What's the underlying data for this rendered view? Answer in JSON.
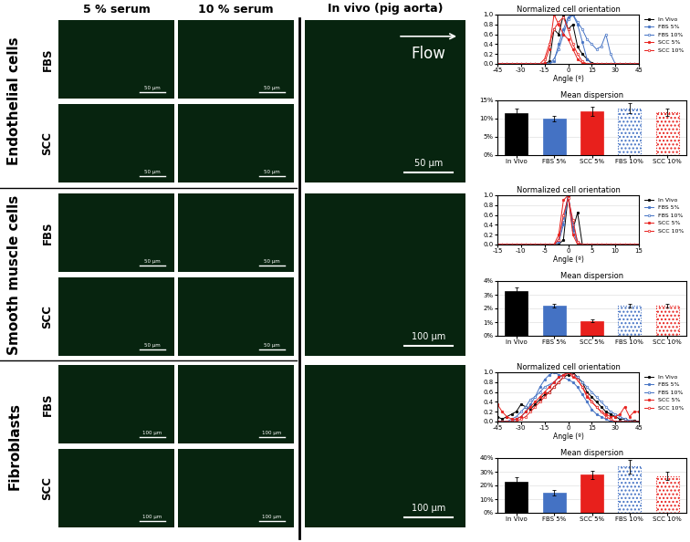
{
  "columns": [
    "5 % serum",
    "10 % serum"
  ],
  "in_vivo_title": "In vivo (pig aorta)",
  "rows": [
    {
      "label": "Endothelial cells",
      "conditions": [
        "FBS",
        "SCC"
      ],
      "scale_bar": "50 µm",
      "in_vivo_scale_bar": "50 µm",
      "annotation": "Flow"
    },
    {
      "label": "Smooth muscle cells",
      "conditions": [
        "FBS",
        "SCC"
      ],
      "scale_bar": "50 µm",
      "in_vivo_scale_bar": "100 µm"
    },
    {
      "label": "Fibroblasts",
      "conditions": [
        "FBS",
        "SCC"
      ],
      "scale_bar": "100 µm",
      "in_vivo_scale_bar": "100 µm"
    }
  ],
  "chart_data": [
    {
      "type": "line",
      "title": "Normalized cell orientation",
      "x_label": "Angle (º)",
      "x": [
        -45,
        -42,
        -39,
        -36,
        -33,
        -30,
        -27,
        -24,
        -21,
        -18,
        -15,
        -12,
        -9,
        -6,
        -3,
        0,
        3,
        6,
        9,
        12,
        15,
        18,
        21,
        24,
        27,
        30,
        33,
        36,
        39,
        42,
        45
      ],
      "series": [
        {
          "name": "In Vivo",
          "color": "#000000",
          "marker": "circle",
          "line_style": "solid",
          "values": [
            0,
            0,
            0,
            0,
            0,
            0,
            0,
            0,
            0,
            0,
            0,
            0.05,
            0.7,
            0.6,
            1.0,
            0.7,
            0.8,
            0.35,
            0.2,
            0.1,
            0.02,
            0,
            0,
            0,
            0,
            0,
            0,
            0,
            0,
            0,
            0
          ]
        },
        {
          "name": "FBS 5%",
          "color": "#4472c4",
          "marker": "circle",
          "line_style": "solid",
          "values": [
            0,
            0,
            0,
            0,
            0,
            0,
            0,
            0,
            0,
            0,
            0,
            0,
            0.05,
            0.4,
            0.7,
            0.95,
            1.0,
            0.8,
            0.45,
            0.1,
            0,
            0,
            0,
            0,
            0,
            0,
            0,
            0,
            0,
            0,
            0
          ]
        },
        {
          "name": "FBS 10%",
          "color": "#4472c4",
          "marker": "open_circle",
          "line_style": "solid",
          "values": [
            0,
            0,
            0,
            0,
            0,
            0,
            0,
            0,
            0,
            0,
            0,
            0,
            0.1,
            0.3,
            0.6,
            0.9,
            1.0,
            0.85,
            0.7,
            0.5,
            0.4,
            0.3,
            0.35,
            0.6,
            0.2,
            0,
            0,
            0,
            0,
            0,
            0
          ]
        },
        {
          "name": "SCC 5%",
          "color": "#e8201c",
          "marker": "circle",
          "line_style": "solid",
          "values": [
            0,
            0,
            0,
            0,
            0,
            0,
            0,
            0,
            0,
            0,
            0.02,
            0.3,
            1.0,
            0.8,
            0.6,
            0.5,
            0.3,
            0.1,
            0.02,
            0,
            0,
            0,
            0,
            0,
            0,
            0,
            0,
            0,
            0,
            0,
            0
          ]
        },
        {
          "name": "SCC 10%",
          "color": "#e8201c",
          "marker": "open_circle",
          "line_style": "solid",
          "values": [
            0,
            0,
            0,
            0,
            0,
            0,
            0,
            0,
            0,
            0,
            0.1,
            0.4,
            0.7,
            0.85,
            0.95,
            0.7,
            0.4,
            0.2,
            0.05,
            0,
            0,
            0,
            0,
            0,
            0,
            0,
            0,
            0,
            0,
            0,
            0
          ]
        }
      ],
      "xlim": [
        -45,
        45
      ],
      "xticks": [
        -45,
        -30,
        -15,
        0,
        15,
        30,
        45
      ],
      "ylim": [
        0,
        1.0
      ],
      "yticks": [
        {
          "value": 0,
          "label": "0.0"
        },
        {
          "value": 0.2,
          "label": "0.2"
        },
        {
          "value": 0.4,
          "label": "0.4"
        },
        {
          "value": 0.6,
          "label": "0.6"
        },
        {
          "value": 0.8,
          "label": "0.8"
        },
        {
          "value": 1.0,
          "label": "1.0"
        }
      ],
      "grid": true,
      "legend": "upper right"
    },
    {
      "type": "bar",
      "title": "Mean dispersion",
      "categories": [
        "In Vivo",
        "FBS 5%",
        "SCC 5%",
        "FBS 10%",
        "SCC 10%"
      ],
      "values": [
        11.5,
        10,
        12,
        12.8,
        11.7
      ],
      "errors": [
        1.2,
        0.8,
        1.2,
        1.4,
        1.0
      ],
      "colors": [
        "#000000",
        "#4472c4",
        "#e8201c",
        "#4472c4",
        "#e8201c"
      ],
      "ylim": [
        0,
        15
      ],
      "yticks": [
        {
          "value": 0,
          "label": "0%"
        },
        {
          "value": 5,
          "label": "5%"
        },
        {
          "value": 10,
          "label": "10%"
        },
        {
          "value": 15,
          "label": "15%"
        }
      ],
      "grid": true
    },
    {
      "type": "line",
      "title": "Normalized cell orientation",
      "x_label": "Angle (º)",
      "x": [
        -15,
        -14,
        -13,
        -12,
        -11,
        -10,
        -9,
        -8,
        -7,
        -6,
        -5,
        -4,
        -3,
        -2,
        -1,
        0,
        1,
        2,
        3,
        4,
        5,
        6,
        7,
        8,
        9,
        10,
        11,
        12,
        13,
        14,
        15
      ],
      "series": [
        {
          "name": "In Vivo",
          "color": "#000000",
          "marker": "circle",
          "line_style": "solid",
          "values": [
            0,
            0,
            0,
            0,
            0,
            0,
            0,
            0,
            0,
            0,
            0,
            0,
            0,
            0,
            0.1,
            1.0,
            0.3,
            0.65,
            0,
            0,
            0,
            0,
            0,
            0,
            0,
            0,
            0,
            0,
            0,
            0,
            0
          ]
        },
        {
          "name": "FBS 5%",
          "color": "#4472c4",
          "marker": "circle",
          "line_style": "solid",
          "values": [
            0,
            0,
            0,
            0,
            0,
            0,
            0,
            0,
            0,
            0,
            0,
            0,
            0,
            0.05,
            0.4,
            1.0,
            0.3,
            0.02,
            0,
            0,
            0,
            0,
            0,
            0,
            0,
            0,
            0,
            0,
            0,
            0,
            0
          ]
        },
        {
          "name": "FBS 10%",
          "color": "#4472c4",
          "marker": "open_circle",
          "line_style": "solid",
          "values": [
            0,
            0,
            0,
            0,
            0,
            0,
            0,
            0,
            0,
            0,
            0,
            0,
            0,
            0.1,
            0.5,
            1.0,
            0.4,
            0.05,
            0,
            0,
            0,
            0,
            0,
            0,
            0,
            0,
            0,
            0,
            0,
            0,
            0
          ]
        },
        {
          "name": "SCC 5%",
          "color": "#e8201c",
          "marker": "circle",
          "line_style": "solid",
          "values": [
            0,
            0,
            0,
            0,
            0,
            0,
            0,
            0,
            0,
            0,
            0,
            0,
            0,
            0.2,
            0.9,
            1.0,
            0.2,
            0,
            0,
            0,
            0,
            0,
            0,
            0,
            0,
            0,
            0,
            0,
            0,
            0,
            0
          ]
        },
        {
          "name": "SCC 10%",
          "color": "#e8201c",
          "marker": "open_circle",
          "line_style": "solid",
          "values": [
            0,
            0,
            0,
            0,
            0,
            0,
            0,
            0,
            0,
            0,
            0,
            0,
            0,
            0.1,
            0.6,
            0.95,
            0.5,
            0.05,
            0,
            0,
            0,
            0,
            0,
            0,
            0,
            0,
            0,
            0,
            0,
            0,
            0
          ]
        }
      ],
      "xlim": [
        -15,
        15
      ],
      "xticks": [
        -15,
        -10,
        -5,
        0,
        5,
        10,
        15
      ],
      "ylim": [
        0,
        1.0
      ],
      "yticks": [
        {
          "value": 0,
          "label": "0.0"
        },
        {
          "value": 0.2,
          "label": "0.2"
        },
        {
          "value": 0.4,
          "label": "0.4"
        },
        {
          "value": 0.6,
          "label": "0.6"
        },
        {
          "value": 0.8,
          "label": "0.8"
        },
        {
          "value": 1.0,
          "label": "1.0"
        }
      ],
      "grid": true,
      "legend": "upper right"
    },
    {
      "type": "bar",
      "title": "Mean dispersion",
      "categories": [
        "In Vivo",
        "FBS 5%",
        "SCC 5%",
        "FBS 10%",
        "SCC 10%"
      ],
      "values": [
        3.3,
        2.2,
        1.1,
        2.2,
        2.2
      ],
      "errors": [
        0.25,
        0.15,
        0.1,
        0.15,
        0.15
      ],
      "colors": [
        "#000000",
        "#4472c4",
        "#e8201c",
        "#4472c4",
        "#e8201c"
      ],
      "ylim": [
        0,
        4
      ],
      "yticks": [
        {
          "value": 0,
          "label": "0%"
        },
        {
          "value": 1,
          "label": "1%"
        },
        {
          "value": 2,
          "label": "2%"
        },
        {
          "value": 3,
          "label": "3%"
        },
        {
          "value": 4,
          "label": "4%"
        }
      ],
      "grid": true
    },
    {
      "type": "line",
      "title": "Normalized cell orientation",
      "x_label": "Angle (º)",
      "x": [
        -45,
        -42,
        -39,
        -36,
        -33,
        -30,
        -27,
        -24,
        -21,
        -18,
        -15,
        -12,
        -9,
        -6,
        -3,
        0,
        3,
        6,
        9,
        12,
        15,
        18,
        21,
        24,
        27,
        30,
        33,
        36,
        39,
        42,
        45
      ],
      "series": [
        {
          "name": "In Vivo",
          "color": "#000000",
          "marker": "circle",
          "line_style": "solid",
          "values": [
            0.1,
            0.05,
            0.1,
            0.15,
            0.2,
            0.35,
            0.3,
            0.25,
            0.35,
            0.45,
            0.55,
            0.6,
            0.7,
            0.8,
            0.9,
            0.95,
            1.0,
            0.9,
            0.8,
            0.6,
            0.5,
            0.4,
            0.3,
            0.2,
            0.15,
            0.1,
            0.05,
            0.05,
            0.02,
            0.02,
            0.0
          ]
        },
        {
          "name": "FBS 5%",
          "color": "#4472c4",
          "marker": "circle",
          "line_style": "solid",
          "values": [
            0,
            0,
            0,
            0,
            0.05,
            0.1,
            0.2,
            0.35,
            0.5,
            0.7,
            0.85,
            0.95,
            1.0,
            0.95,
            0.9,
            0.85,
            0.8,
            0.7,
            0.55,
            0.4,
            0.25,
            0.15,
            0.1,
            0.05,
            0,
            0,
            0,
            0,
            0,
            0,
            0
          ]
        },
        {
          "name": "FBS 10%",
          "color": "#4472c4",
          "marker": "open_circle",
          "line_style": "solid",
          "values": [
            0,
            0,
            0,
            0.05,
            0.1,
            0.2,
            0.3,
            0.45,
            0.5,
            0.6,
            0.7,
            0.75,
            0.8,
            0.9,
            0.95,
            1.0,
            0.95,
            0.9,
            0.8,
            0.7,
            0.6,
            0.5,
            0.4,
            0.3,
            0.2,
            0.15,
            0.1,
            0.05,
            0.02,
            0,
            0
          ]
        },
        {
          "name": "SCC 5%",
          "color": "#e8201c",
          "marker": "circle",
          "line_style": "solid",
          "values": [
            0.35,
            0.2,
            0.1,
            0.05,
            0.05,
            0.1,
            0.2,
            0.3,
            0.4,
            0.5,
            0.6,
            0.7,
            0.8,
            0.9,
            0.95,
            1.0,
            0.9,
            0.85,
            0.7,
            0.5,
            0.4,
            0.3,
            0.2,
            0.15,
            0.1,
            0.1,
            0.15,
            0.3,
            0.1,
            0.2,
            0.2
          ]
        },
        {
          "name": "SCC 10%",
          "color": "#e8201c",
          "marker": "open_circle",
          "line_style": "solid",
          "values": [
            0,
            0,
            0,
            0,
            0,
            0.05,
            0.1,
            0.2,
            0.3,
            0.4,
            0.5,
            0.6,
            0.7,
            0.8,
            0.9,
            1.0,
            0.95,
            0.85,
            0.7,
            0.55,
            0.4,
            0.3,
            0.2,
            0.1,
            0.05,
            0,
            0,
            0,
            0,
            0,
            0
          ]
        }
      ],
      "xlim": [
        -45,
        45
      ],
      "xticks": [
        -45,
        -30,
        -15,
        0,
        15,
        30,
        45
      ],
      "ylim": [
        0,
        1.0
      ],
      "yticks": [
        {
          "value": 0,
          "label": "0.0"
        },
        {
          "value": 0.2,
          "label": "0.2"
        },
        {
          "value": 0.4,
          "label": "0.4"
        },
        {
          "value": 0.6,
          "label": "0.6"
        },
        {
          "value": 0.8,
          "label": "0.8"
        },
        {
          "value": 1.0,
          "label": "1.0"
        }
      ],
      "grid": true,
      "legend": "upper right"
    },
    {
      "type": "bar",
      "title": "Mean dispersion",
      "categories": [
        "In Vivo",
        "FBS 5%",
        "SCC 5%",
        "FBS 10%",
        "SCC 10%"
      ],
      "values": [
        23,
        14.5,
        28,
        34,
        27
      ],
      "errors": [
        3,
        2,
        3,
        5,
        3
      ],
      "colors": [
        "#000000",
        "#4472c4",
        "#e8201c",
        "#4472c4",
        "#e8201c"
      ],
      "ylim": [
        0,
        40
      ],
      "yticks": [
        {
          "value": 0,
          "label": "0%"
        },
        {
          "value": 10,
          "label": "10%"
        },
        {
          "value": 20,
          "label": "20%"
        },
        {
          "value": 30,
          "label": "30%"
        },
        {
          "value": 40,
          "label": "40%"
        }
      ],
      "grid": true
    }
  ]
}
